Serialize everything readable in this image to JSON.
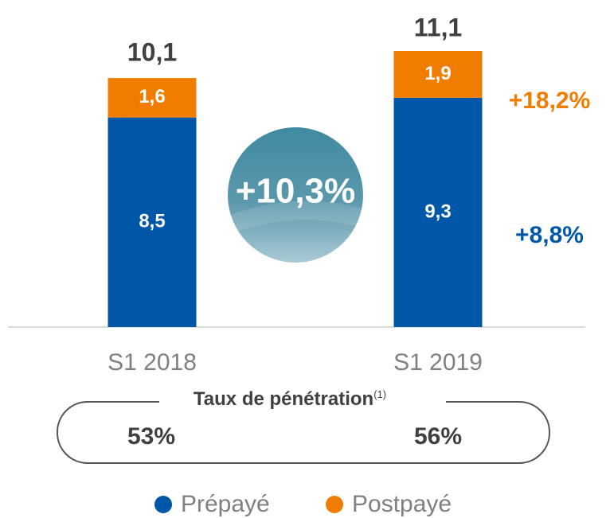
{
  "chart_data": {
    "type": "stacked_bar",
    "categories": [
      "S1 2018",
      "S1 2019"
    ],
    "series": [
      {
        "name": "Prépayé",
        "color": "#0057a8",
        "values": [
          8.5,
          9.3
        ],
        "value_labels": [
          "8,5",
          "9,3"
        ]
      },
      {
        "name": "Postpayé",
        "color": "#f07d00",
        "values": [
          1.6,
          1.9
        ],
        "value_labels": [
          "1,6",
          "1,9"
        ]
      }
    ],
    "totals": [
      10.1,
      11.1
    ],
    "total_labels": [
      "10,1",
      "11,1"
    ],
    "annotations": {
      "total_growth": "+10,3%",
      "postpaid_growth": "+18,2%",
      "prepaid_growth": "+8,8%"
    },
    "legend": "bottom"
  },
  "penetration": {
    "title": "Taux de pénétration",
    "note": "(1)",
    "values": [
      "53%",
      "56%"
    ]
  }
}
